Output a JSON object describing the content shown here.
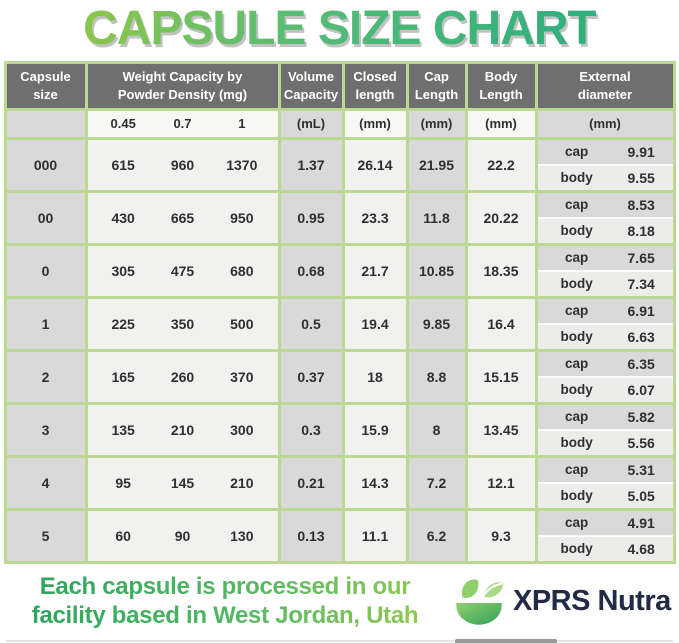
{
  "title": "CAPSULE SIZE CHART",
  "colors": {
    "border_green": "#bcd892",
    "header_gray": "#6f6f6f",
    "cell_gray": "#d9d9d9",
    "cell_light": "#f1f1f0",
    "title_green_light": "#8cc64b",
    "title_green_dark": "#2fae7d",
    "brand_navy": "#212b45"
  },
  "table_head": {
    "capsule_size": "Capsule size",
    "weight_capacity": "Weight Capacity by\nPowder Density (mg)",
    "volume_capacity": "Volume\nCapacity",
    "closed_length": "Closed\nlength",
    "cap_length": "Cap\nLength",
    "body_length": "Body\nLength",
    "external_diameter": "External\ndiameter"
  },
  "units": {
    "d045": "0.45",
    "d07": "0.7",
    "d1": "1",
    "volume": "(mL)",
    "closed": "(mm)",
    "cap": "(mm)",
    "body": "(mm)",
    "external": "(mm)"
  },
  "labels": {
    "cap": "cap",
    "body": "body"
  },
  "chart_data": {
    "type": "table",
    "title": "CAPSULE SIZE CHART",
    "columns": [
      "Capsule size",
      "Weight Capacity at Powder Density 0.45 (mg)",
      "Weight Capacity at Powder Density 0.7 (mg)",
      "Weight Capacity at Powder Density 1 (mg)",
      "Volume Capacity (mL)",
      "Closed length (mm)",
      "Cap Length (mm)",
      "Body Length (mm)",
      "External diameter cap (mm)",
      "External diameter body (mm)"
    ],
    "rows": [
      [
        "000",
        "615",
        "960",
        "1370",
        "1.37",
        "26.14",
        "21.95",
        "22.2",
        "9.91",
        "9.55"
      ],
      [
        "00",
        "430",
        "665",
        "950",
        "0.95",
        "23.3",
        "11.8",
        "20.22",
        "8.53",
        "8.18"
      ],
      [
        "0",
        "305",
        "475",
        "680",
        "0.68",
        "21.7",
        "10.85",
        "18.35",
        "7.65",
        "7.34"
      ],
      [
        "1",
        "225",
        "350",
        "500",
        "0.5",
        "19.4",
        "9.85",
        "16.4",
        "6.91",
        "6.63"
      ],
      [
        "2",
        "165",
        "260",
        "370",
        "0.37",
        "18",
        "8.8",
        "15.15",
        "6.35",
        "6.07"
      ],
      [
        "3",
        "135",
        "210",
        "300",
        "0.3",
        "15.9",
        "8",
        "13.45",
        "5.82",
        "5.56"
      ],
      [
        "4",
        "95",
        "145",
        "210",
        "0.21",
        "14.3",
        "7.2",
        "12.1",
        "5.31",
        "5.05"
      ],
      [
        "5",
        "60",
        "90",
        "130",
        "0.13",
        "11.1",
        "6.2",
        "9.3",
        "4.91",
        "4.68"
      ]
    ]
  },
  "footer": {
    "tagline_line1": "Each capsule is processed in our",
    "tagline_line2": "facility based in West Jordan, Utah",
    "brand": "XPRS Nutra"
  }
}
